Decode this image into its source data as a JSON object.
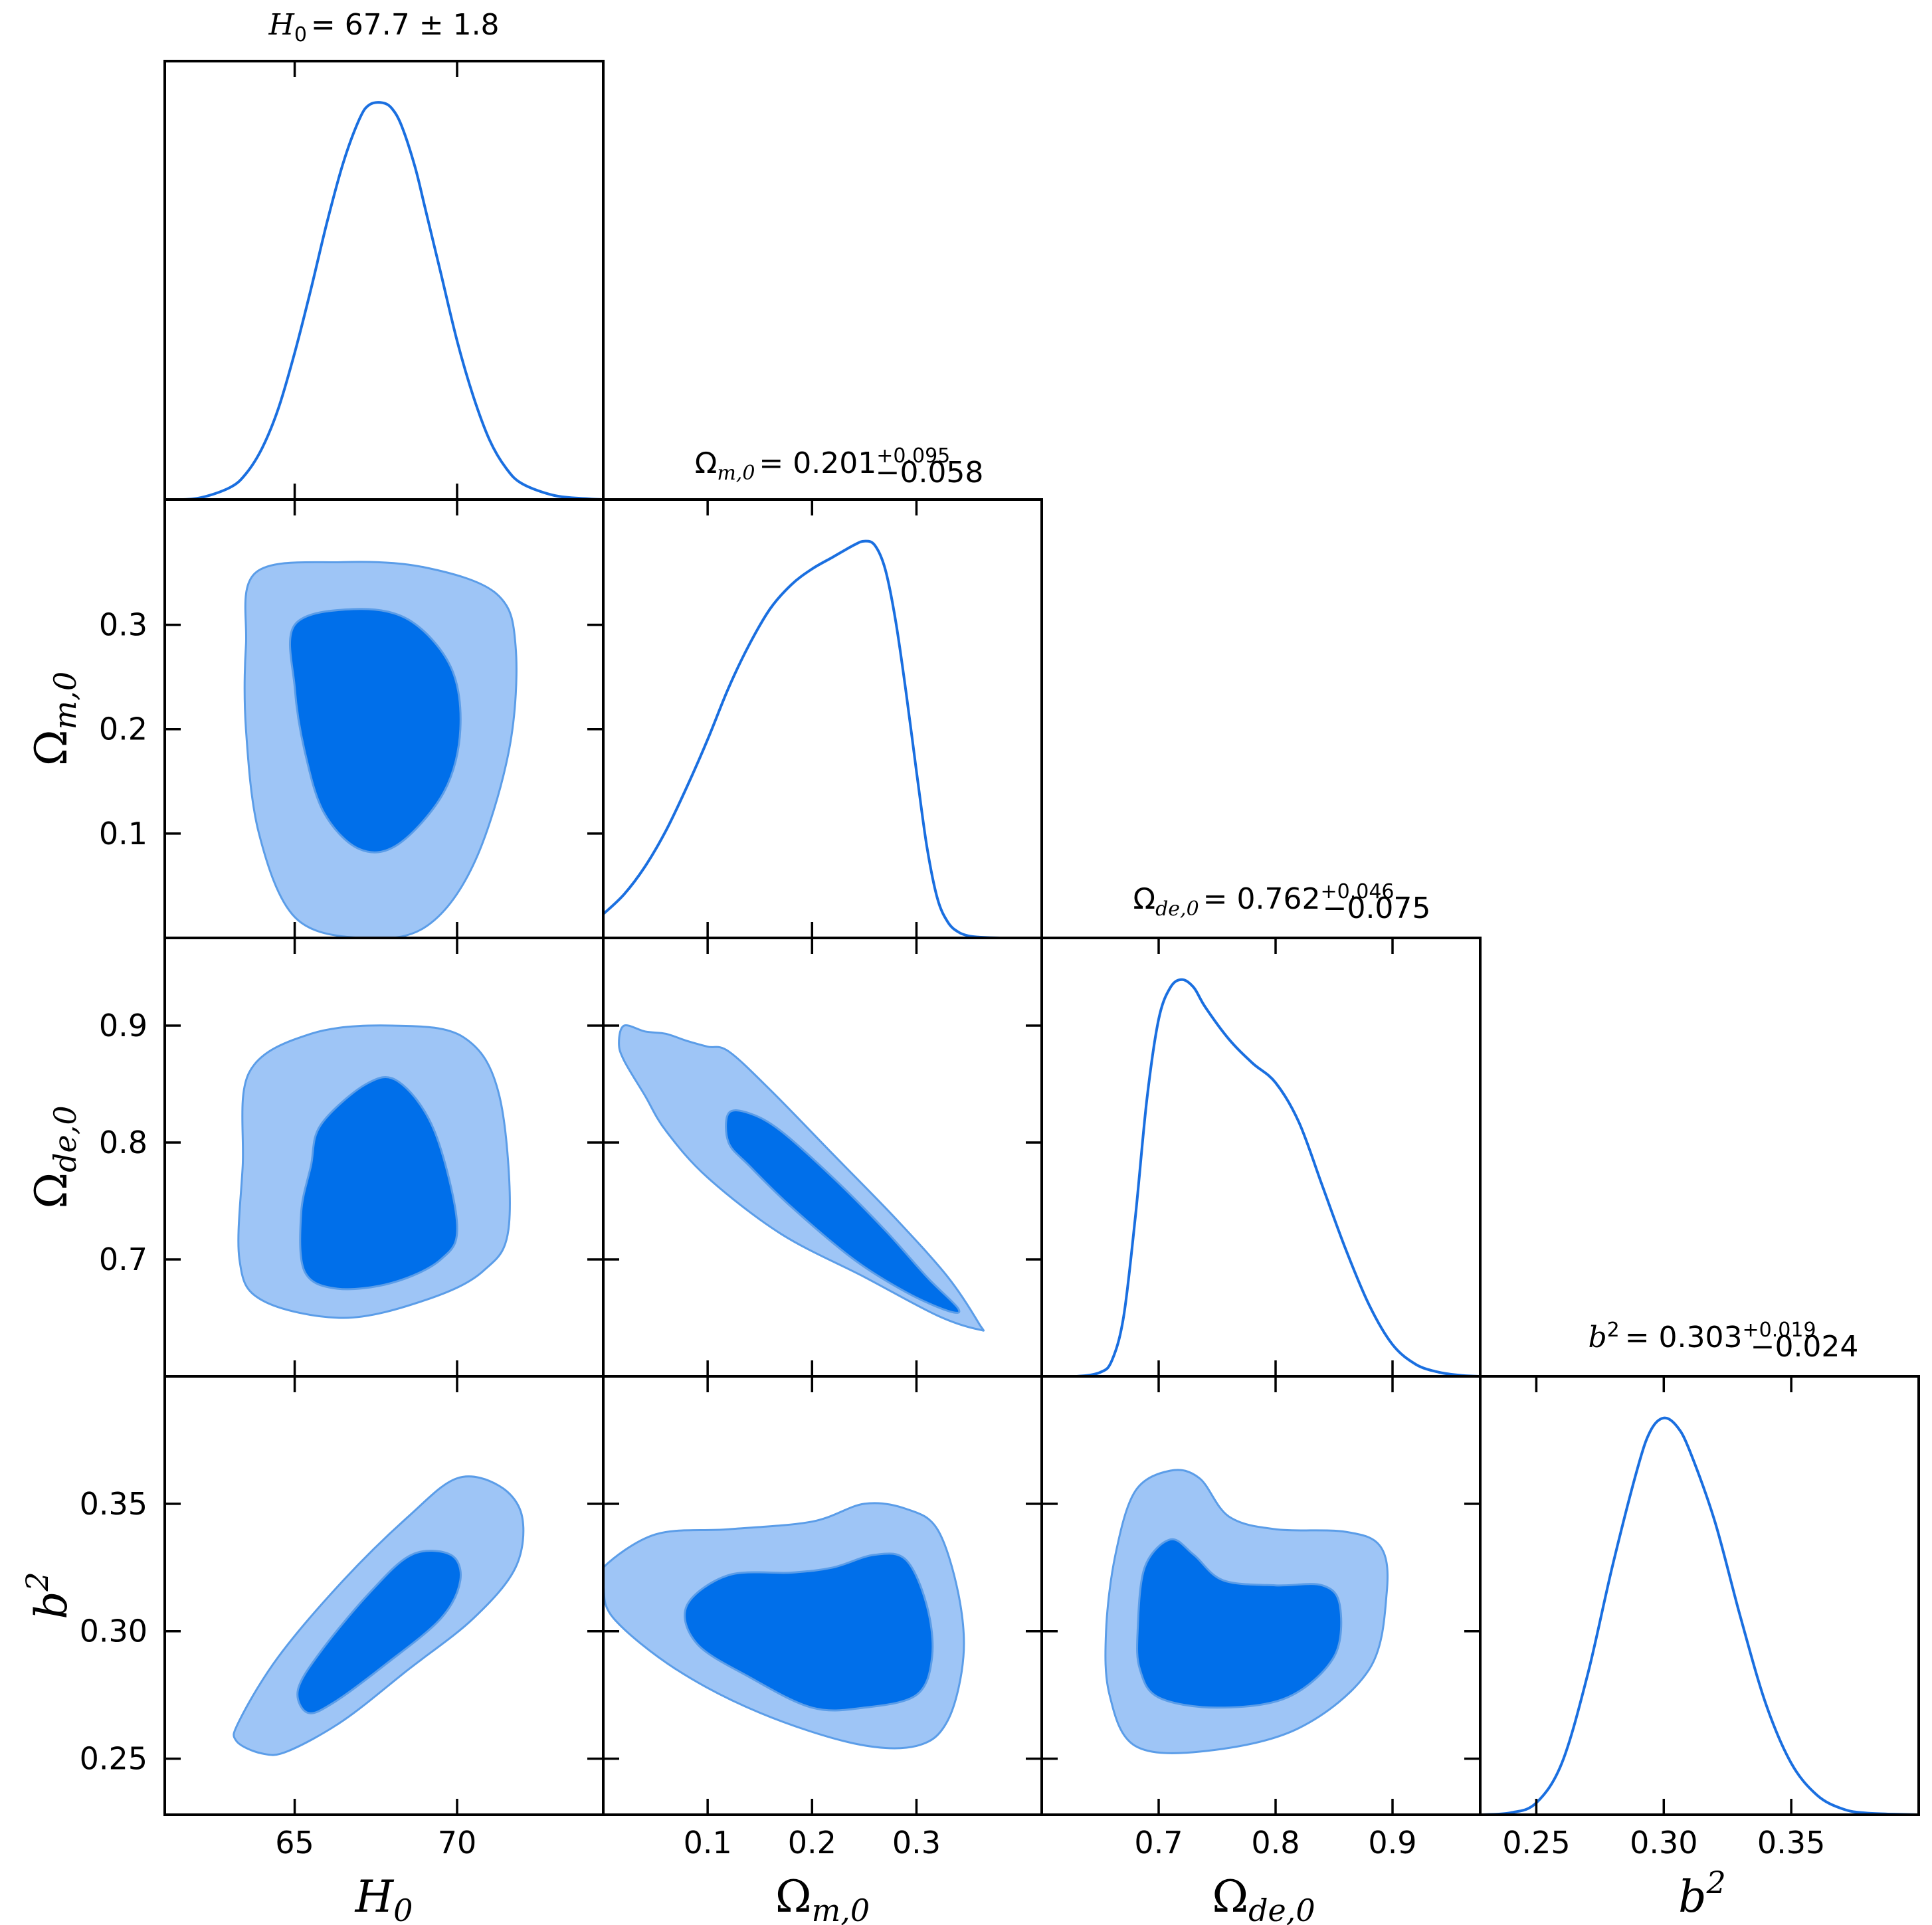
{
  "colors": {
    "line": "#1a6fe0",
    "contour_inner": "#006fea",
    "contour_outer": "#9ec5f6",
    "contour_edge": "#5b9de8",
    "axes": "#000000"
  },
  "chart_data": {
    "type": "triangle-corner-plot",
    "parameters": [
      {
        "key": "H0",
        "symbol": "H",
        "sub": "0",
        "range": [
          61,
          74.5
        ],
        "ticks": [
          65,
          70
        ],
        "tick_labels": [
          "65",
          "70"
        ],
        "title_prefix": "= 67.7 ± 1.8",
        "title_sup": "",
        "title_sub": "",
        "marginal": {
          "x": [
            61,
            62,
            63,
            63.5,
            64,
            64.5,
            65,
            65.5,
            66,
            66.5,
            67,
            67.3,
            67.7,
            68,
            68.3,
            68.7,
            69,
            69.5,
            70,
            70.5,
            71,
            71.5,
            72,
            73,
            74,
            74.5
          ],
          "y": [
            0.0,
            0.003,
            0.03,
            0.065,
            0.13,
            0.23,
            0.37,
            0.53,
            0.7,
            0.85,
            0.96,
            0.995,
            1.0,
            0.985,
            0.94,
            0.84,
            0.74,
            0.57,
            0.4,
            0.26,
            0.15,
            0.08,
            0.04,
            0.01,
            0.002,
            0.0
          ]
        }
      },
      {
        "key": "Om0",
        "symbol": "Ω",
        "sub": "m,0",
        "range": [
          0,
          0.42
        ],
        "ticks": [
          0.1,
          0.2,
          0.3
        ],
        "tick_labels": [
          "0.1",
          "0.2",
          "0.3"
        ],
        "title_prefix": "= 0.201",
        "title_sup": "+0.095",
        "title_sub": "−0.058",
        "marginal": {
          "x": [
            0,
            0.02,
            0.04,
            0.06,
            0.08,
            0.1,
            0.12,
            0.14,
            0.16,
            0.18,
            0.2,
            0.22,
            0.24,
            0.25,
            0.26,
            0.27,
            0.28,
            0.29,
            0.3,
            0.31,
            0.32,
            0.33,
            0.34,
            0.35,
            0.36,
            0.38,
            0.42
          ],
          "y": [
            0.06,
            0.11,
            0.18,
            0.27,
            0.38,
            0.5,
            0.63,
            0.74,
            0.83,
            0.89,
            0.93,
            0.96,
            0.99,
            1.0,
            0.99,
            0.93,
            0.8,
            0.62,
            0.42,
            0.23,
            0.1,
            0.04,
            0.015,
            0.005,
            0.002,
            0.0,
            0.0
          ]
        }
      },
      {
        "key": "Ode0",
        "symbol": "Ω",
        "sub": "de,0",
        "range": [
          0.6,
          0.975
        ],
        "ticks": [
          0.7,
          0.8,
          0.9
        ],
        "tick_labels": [
          "0.7",
          "0.8",
          "0.9"
        ],
        "title_prefix": "= 0.762",
        "title_sup": "+0.046",
        "title_sub": "−0.075",
        "marginal": {
          "x": [
            0.6,
            0.63,
            0.65,
            0.66,
            0.67,
            0.68,
            0.69,
            0.7,
            0.71,
            0.72,
            0.73,
            0.74,
            0.76,
            0.78,
            0.8,
            0.82,
            0.84,
            0.86,
            0.88,
            0.9,
            0.92,
            0.94,
            0.96,
            0.975
          ],
          "y": [
            0.0,
            0.0,
            0.01,
            0.04,
            0.15,
            0.4,
            0.7,
            0.9,
            0.98,
            1.0,
            0.98,
            0.93,
            0.85,
            0.79,
            0.74,
            0.64,
            0.48,
            0.32,
            0.18,
            0.08,
            0.03,
            0.01,
            0.002,
            0.0
          ]
        }
      },
      {
        "key": "b2",
        "symbol": "b",
        "sub": "",
        "sup": "2",
        "range": [
          0.228,
          0.4
        ],
        "ticks": [
          0.25,
          0.3,
          0.35
        ],
        "tick_labels": [
          "0.25",
          "0.30",
          "0.35"
        ],
        "title_prefix": "= 0.303",
        "title_sup": "+0.019",
        "title_sub": "−0.024",
        "marginal": {
          "x": [
            0.228,
            0.24,
            0.25,
            0.26,
            0.27,
            0.28,
            0.29,
            0.295,
            0.3,
            0.305,
            0.31,
            0.32,
            0.33,
            0.34,
            0.35,
            0.36,
            0.37,
            0.38,
            0.4
          ],
          "y": [
            0.0,
            0.005,
            0.03,
            0.13,
            0.35,
            0.63,
            0.88,
            0.97,
            1.0,
            0.98,
            0.92,
            0.74,
            0.5,
            0.28,
            0.13,
            0.05,
            0.015,
            0.004,
            0.0
          ]
        }
      }
    ],
    "contours": [
      {
        "row": 1,
        "col": 0,
        "outer": [
          [
            63.8,
            0.35
          ],
          [
            66.5,
            0.36
          ],
          [
            69.0,
            0.355
          ],
          [
            71.2,
            0.33
          ],
          [
            71.8,
            0.28
          ],
          [
            71.6,
            0.18
          ],
          [
            70.5,
            0.07
          ],
          [
            69.0,
            0.01
          ],
          [
            67.0,
            0.0
          ],
          [
            65.0,
            0.02
          ],
          [
            63.9,
            0.1
          ],
          [
            63.5,
            0.2
          ],
          [
            63.5,
            0.28
          ]
        ],
        "inner": [
          [
            65.0,
            0.3
          ],
          [
            66.8,
            0.315
          ],
          [
            68.5,
            0.305
          ],
          [
            69.8,
            0.26
          ],
          [
            70.1,
            0.2
          ],
          [
            69.6,
            0.14
          ],
          [
            68.2,
            0.09
          ],
          [
            67.0,
            0.085
          ],
          [
            65.9,
            0.12
          ],
          [
            65.3,
            0.18
          ],
          [
            65.0,
            0.24
          ]
        ]
      },
      {
        "row": 2,
        "col": 0,
        "outer": [
          [
            63.6,
            0.86
          ],
          [
            65.5,
            0.893
          ],
          [
            68.0,
            0.9
          ],
          [
            70.2,
            0.89
          ],
          [
            71.3,
            0.84
          ],
          [
            71.6,
            0.73
          ],
          [
            70.8,
            0.69
          ],
          [
            69.0,
            0.665
          ],
          [
            66.5,
            0.65
          ],
          [
            64.0,
            0.665
          ],
          [
            63.3,
            0.7
          ],
          [
            63.4,
            0.78
          ]
        ],
        "inner": [
          [
            65.8,
            0.815
          ],
          [
            67.2,
            0.85
          ],
          [
            68.2,
            0.852
          ],
          [
            69.3,
            0.81
          ],
          [
            70.0,
            0.73
          ],
          [
            69.5,
            0.7
          ],
          [
            68.0,
            0.68
          ],
          [
            66.3,
            0.675
          ],
          [
            65.3,
            0.69
          ],
          [
            65.2,
            0.74
          ],
          [
            65.5,
            0.78
          ]
        ]
      },
      {
        "row": 2,
        "col": 1,
        "outer": [
          [
            0.02,
            0.9
          ],
          [
            0.04,
            0.895
          ],
          [
            0.06,
            0.893
          ],
          [
            0.08,
            0.887
          ],
          [
            0.1,
            0.882
          ],
          [
            0.12,
            0.878
          ],
          [
            0.16,
            0.845
          ],
          [
            0.22,
            0.79
          ],
          [
            0.28,
            0.735
          ],
          [
            0.33,
            0.685
          ],
          [
            0.36,
            0.645
          ],
          [
            0.36,
            0.64
          ],
          [
            0.32,
            0.652
          ],
          [
            0.25,
            0.685
          ],
          [
            0.17,
            0.722
          ],
          [
            0.1,
            0.77
          ],
          [
            0.06,
            0.81
          ],
          [
            0.04,
            0.84
          ],
          [
            0.02,
            0.87
          ],
          [
            0.015,
            0.885
          ]
        ],
        "inner": [
          [
            0.12,
            0.825
          ],
          [
            0.14,
            0.825
          ],
          [
            0.17,
            0.81
          ],
          [
            0.22,
            0.77
          ],
          [
            0.27,
            0.725
          ],
          [
            0.31,
            0.685
          ],
          [
            0.34,
            0.658
          ],
          [
            0.33,
            0.656
          ],
          [
            0.29,
            0.672
          ],
          [
            0.24,
            0.7
          ],
          [
            0.18,
            0.745
          ],
          [
            0.14,
            0.78
          ],
          [
            0.12,
            0.8
          ]
        ]
      },
      {
        "row": 3,
        "col": 0,
        "outer": [
          [
            63.3,
            0.265
          ],
          [
            64.5,
            0.29
          ],
          [
            66.5,
            0.32
          ],
          [
            68.5,
            0.345
          ],
          [
            70.0,
            0.36
          ],
          [
            71.3,
            0.357
          ],
          [
            72.0,
            0.345
          ],
          [
            71.8,
            0.325
          ],
          [
            70.5,
            0.305
          ],
          [
            68.5,
            0.285
          ],
          [
            66.5,
            0.265
          ],
          [
            64.8,
            0.253
          ],
          [
            64.0,
            0.252
          ],
          [
            63.2,
            0.257
          ]
        ],
        "inner": [
          [
            65.1,
            0.277
          ],
          [
            65.8,
            0.292
          ],
          [
            67.3,
            0.315
          ],
          [
            68.6,
            0.33
          ],
          [
            69.8,
            0.33
          ],
          [
            70.1,
            0.32
          ],
          [
            69.5,
            0.305
          ],
          [
            67.8,
            0.287
          ],
          [
            66.2,
            0.272
          ],
          [
            65.4,
            0.268
          ]
        ]
      },
      {
        "row": 3,
        "col": 1,
        "outer": [
          [
            0.0,
            0.325
          ],
          [
            0.05,
            0.338
          ],
          [
            0.12,
            0.34
          ],
          [
            0.2,
            0.343
          ],
          [
            0.25,
            0.35
          ],
          [
            0.29,
            0.348
          ],
          [
            0.32,
            0.34
          ],
          [
            0.34,
            0.315
          ],
          [
            0.345,
            0.29
          ],
          [
            0.33,
            0.265
          ],
          [
            0.3,
            0.255
          ],
          [
            0.24,
            0.256
          ],
          [
            0.15,
            0.268
          ],
          [
            0.07,
            0.285
          ],
          [
            0.01,
            0.305
          ],
          [
            0.0,
            0.318
          ]
        ],
        "inner": [
          [
            0.08,
            0.31
          ],
          [
            0.12,
            0.322
          ],
          [
            0.18,
            0.323
          ],
          [
            0.22,
            0.325
          ],
          [
            0.26,
            0.33
          ],
          [
            0.29,
            0.328
          ],
          [
            0.31,
            0.31
          ],
          [
            0.315,
            0.29
          ],
          [
            0.3,
            0.275
          ],
          [
            0.25,
            0.27
          ],
          [
            0.2,
            0.27
          ],
          [
            0.14,
            0.282
          ],
          [
            0.09,
            0.295
          ]
        ]
      },
      {
        "row": 3,
        "col": 2,
        "outer": [
          [
            0.655,
            0.3
          ],
          [
            0.663,
            0.33
          ],
          [
            0.68,
            0.355
          ],
          [
            0.71,
            0.363
          ],
          [
            0.735,
            0.36
          ],
          [
            0.76,
            0.345
          ],
          [
            0.8,
            0.34
          ],
          [
            0.86,
            0.339
          ],
          [
            0.89,
            0.333
          ],
          [
            0.895,
            0.315
          ],
          [
            0.88,
            0.285
          ],
          [
            0.82,
            0.262
          ],
          [
            0.74,
            0.253
          ],
          [
            0.68,
            0.255
          ],
          [
            0.658,
            0.275
          ]
        ],
        "inner": [
          [
            0.682,
            0.3
          ],
          [
            0.688,
            0.325
          ],
          [
            0.71,
            0.336
          ],
          [
            0.73,
            0.33
          ],
          [
            0.755,
            0.32
          ],
          [
            0.8,
            0.318
          ],
          [
            0.84,
            0.318
          ],
          [
            0.855,
            0.31
          ],
          [
            0.85,
            0.29
          ],
          [
            0.81,
            0.274
          ],
          [
            0.75,
            0.27
          ],
          [
            0.7,
            0.274
          ],
          [
            0.684,
            0.285
          ]
        ]
      }
    ]
  }
}
